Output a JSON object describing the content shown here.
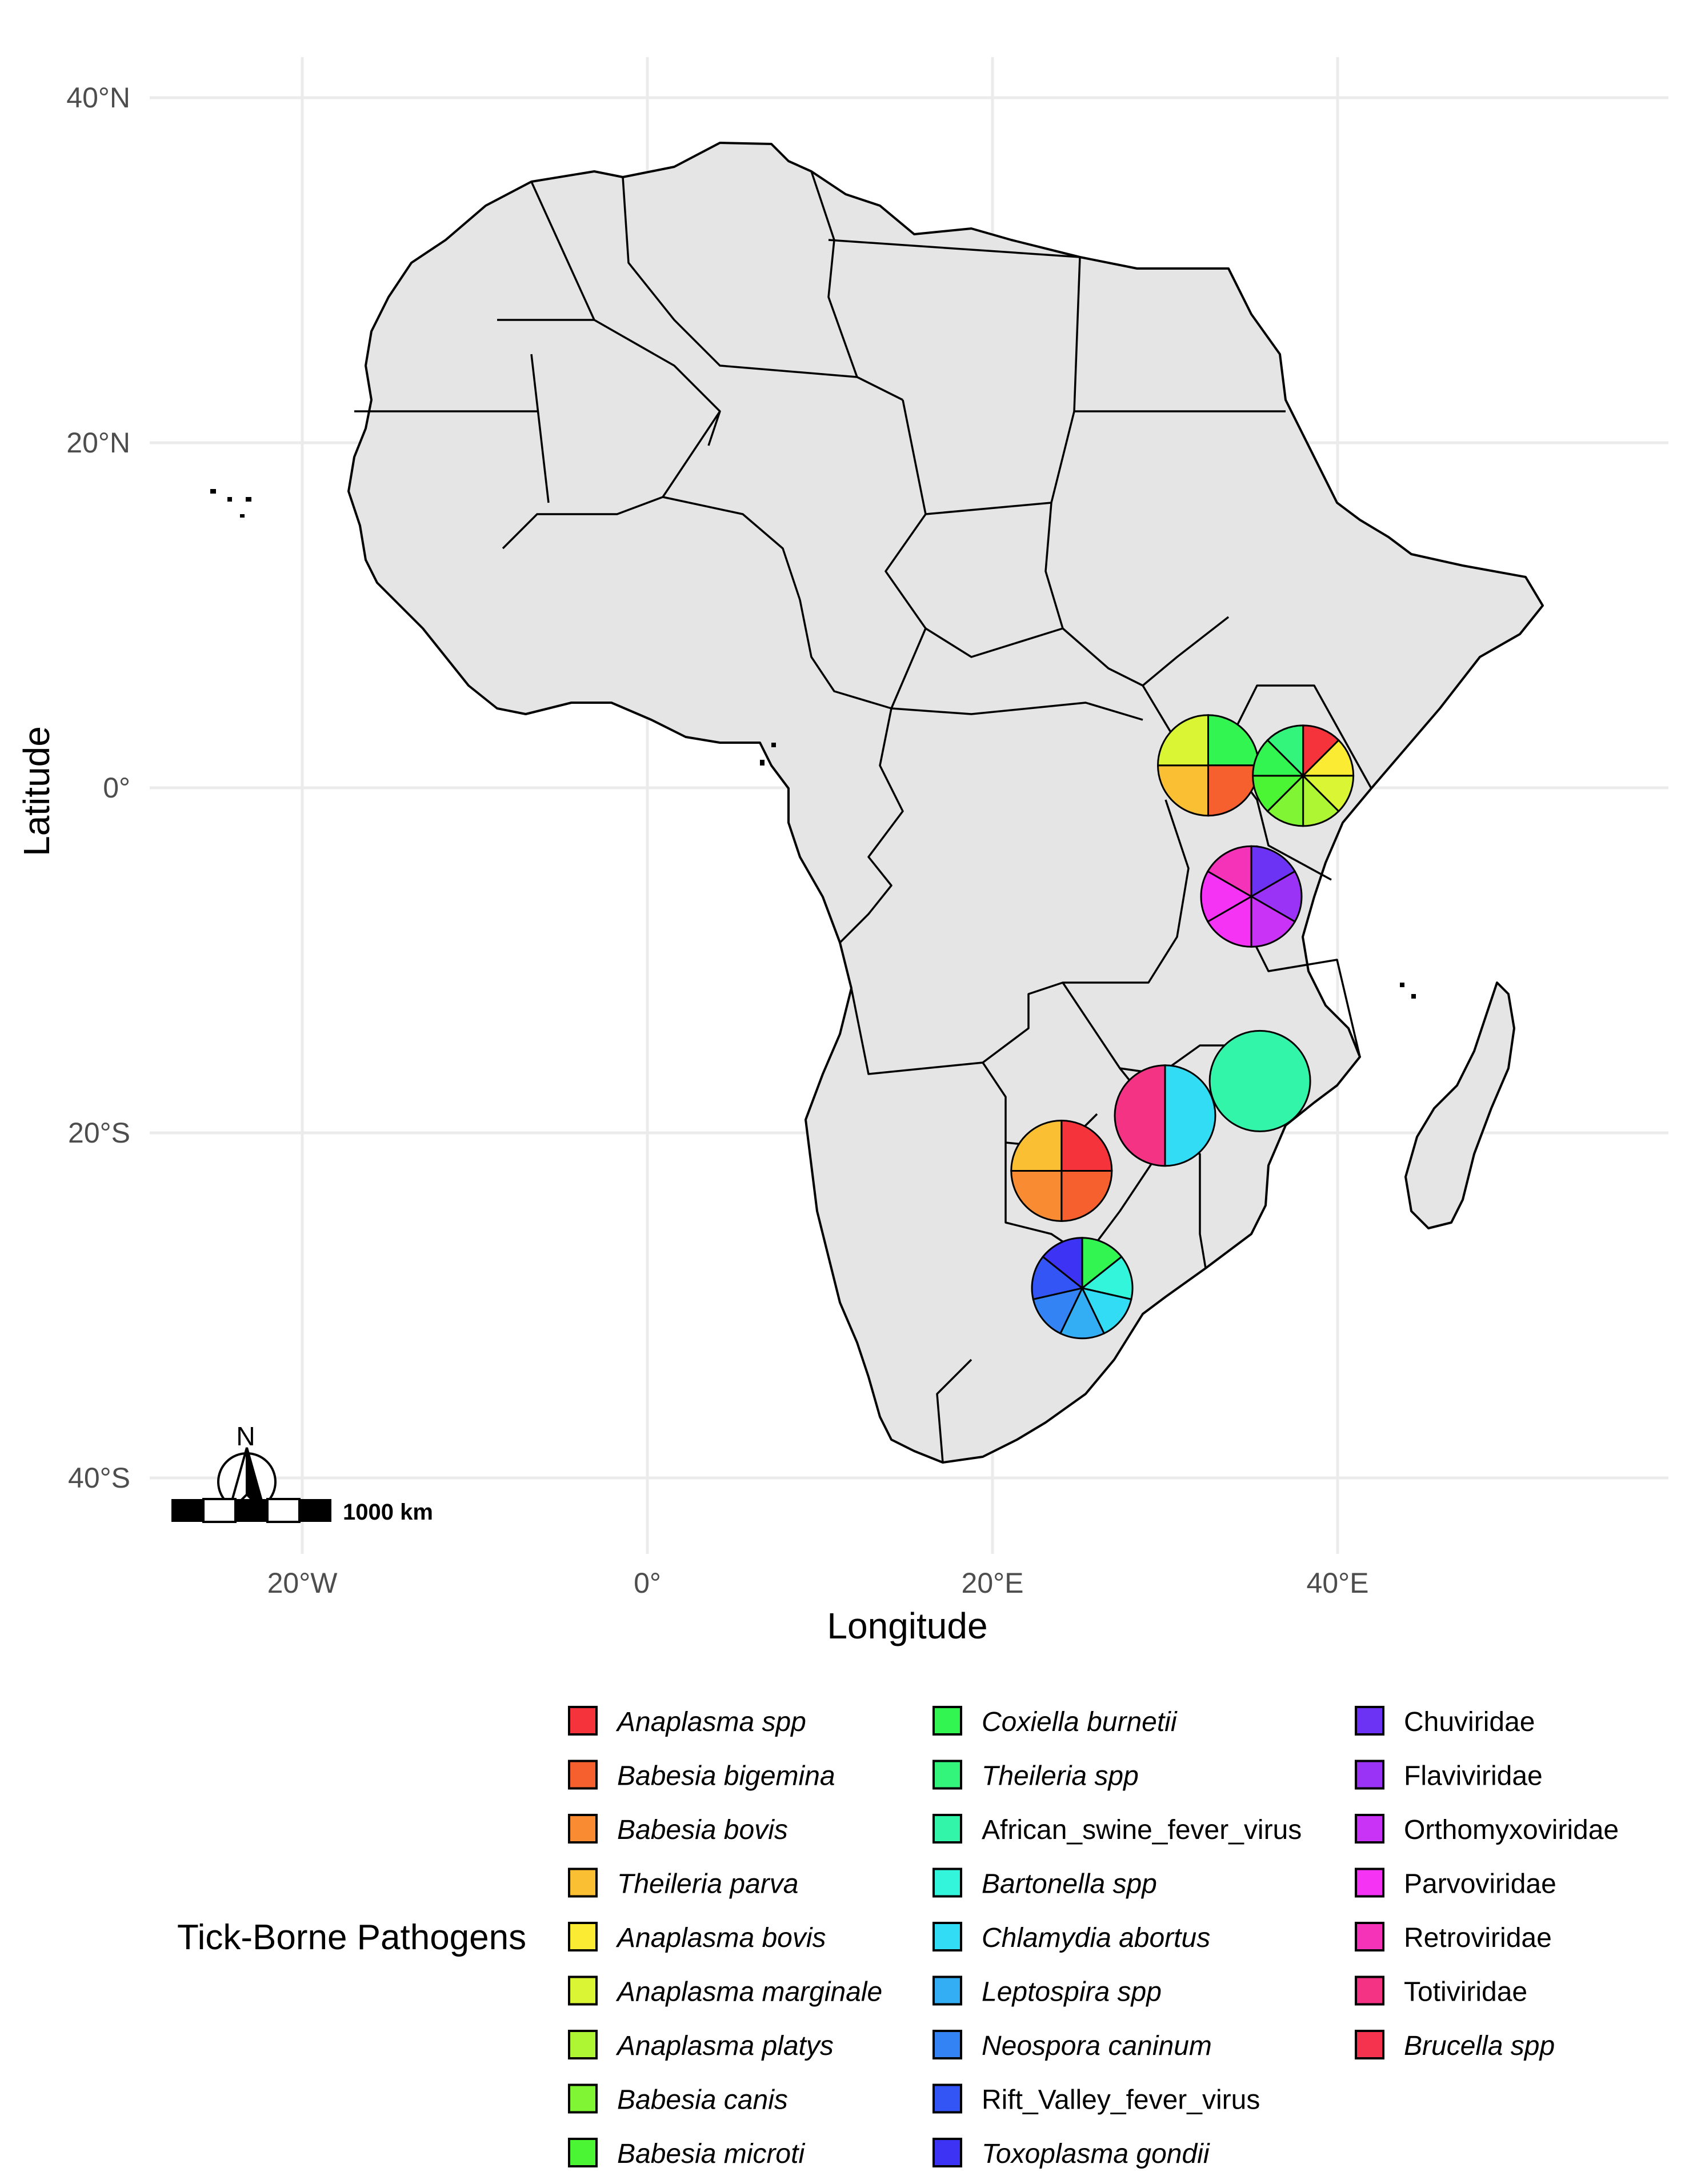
{
  "axes": {
    "x_title": "Longitude",
    "y_title": "Latitude",
    "x_ticks": [
      {
        "value": -20,
        "label": "20°W"
      },
      {
        "value": 0,
        "label": "0°"
      },
      {
        "value": 20,
        "label": "20°E"
      },
      {
        "value": 40,
        "label": "40°E"
      }
    ],
    "y_ticks": [
      {
        "value": 40,
        "label": "40°N"
      },
      {
        "value": 20,
        "label": "20°N"
      },
      {
        "value": 0,
        "label": "0°"
      },
      {
        "value": -20,
        "label": "20°S"
      },
      {
        "value": -40,
        "label": "40°S"
      }
    ],
    "lon_range": [
      -28,
      58
    ],
    "lat_range": [
      -43,
      44
    ]
  },
  "north_arrow": {
    "label": "N"
  },
  "scale_bar": {
    "label": "1000 km"
  },
  "legend": {
    "title": "Tick-Borne Pathogens",
    "entries": [
      {
        "label": "Anaplasma spp",
        "color": "#f4333b",
        "italic": true
      },
      {
        "label": "Babesia bigemina",
        "color": "#f5602e",
        "italic": true
      },
      {
        "label": "Babesia bovis",
        "color": "#f98c33",
        "italic": true
      },
      {
        "label": "Theileria parva",
        "color": "#fbbf33",
        "italic": true
      },
      {
        "label": "Anaplasma bovis",
        "color": "#fbec33",
        "italic": true
      },
      {
        "label": "Anaplasma marginale",
        "color": "#d9f533",
        "italic": true
      },
      {
        "label": "Anaplasma platys",
        "color": "#aef533",
        "italic": true
      },
      {
        "label": "Babesia canis",
        "color": "#7ff533",
        "italic": true
      },
      {
        "label": "Babesia microti",
        "color": "#4cf533",
        "italic": true
      },
      {
        "label": "Coxiella burnetii",
        "color": "#33f551",
        "italic": true
      },
      {
        "label": "Theileria spp",
        "color": "#33f57c",
        "italic": true
      },
      {
        "label": "African_swine_fever_virus",
        "color": "#33f5aa",
        "italic": false
      },
      {
        "label": "Bartonella spp",
        "color": "#33f5dc",
        "italic": true
      },
      {
        "label": "Chlamydia abortus",
        "color": "#33dcf5",
        "italic": true
      },
      {
        "label": "Leptospira spp",
        "color": "#33aef5",
        "italic": true
      },
      {
        "label": "Neospora caninum",
        "color": "#3383f5",
        "italic": true
      },
      {
        "label": "Rift_Valley_fever_virus",
        "color": "#3355f5",
        "italic": false
      },
      {
        "label": "Toxoplasma gondii",
        "color": "#3c33f5",
        "italic": true
      },
      {
        "label": "Chuviridae",
        "color": "#6c33f5",
        "italic": false
      },
      {
        "label": "Flaviviridae",
        "color": "#9a33f5",
        "italic": false
      },
      {
        "label": "Orthomyxoviridae",
        "color": "#c833f5",
        "italic": false
      },
      {
        "label": "Parvoviridae",
        "color": "#f533f5",
        "italic": false
      },
      {
        "label": "Retroviridae",
        "color": "#f533b8",
        "italic": false
      },
      {
        "label": "Totiviridae",
        "color": "#f53385",
        "italic": false
      },
      {
        "label": "Brucella spp",
        "color": "#f5334f",
        "italic": true
      }
    ]
  },
  "chart_data": {
    "type": "map-pie",
    "title": "",
    "xlabel": "Longitude",
    "ylabel": "Latitude",
    "region": "Africa",
    "pies": [
      {
        "name": "uganda",
        "lon": 32.5,
        "lat": 1.3,
        "slices": [
          {
            "pathogen": "Coxiella burnetii",
            "color": "#33f551",
            "value": 1
          },
          {
            "pathogen": "Babesia bigemina",
            "color": "#f5602e",
            "value": 1
          },
          {
            "pathogen": "Theileria parva",
            "color": "#fbbf33",
            "value": 1
          },
          {
            "pathogen": "Anaplasma marginale",
            "color": "#d9f533",
            "value": 1
          }
        ]
      },
      {
        "name": "kenya",
        "lon": 38.0,
        "lat": 0.7,
        "slices": [
          {
            "pathogen": "Anaplasma spp",
            "color": "#f4333b",
            "value": 1
          },
          {
            "pathogen": "Anaplasma bovis",
            "color": "#fbec33",
            "value": 1
          },
          {
            "pathogen": "Anaplasma marginale",
            "color": "#d9f533",
            "value": 1
          },
          {
            "pathogen": "Anaplasma platys",
            "color": "#aef533",
            "value": 1
          },
          {
            "pathogen": "Babesia canis",
            "color": "#7ff533",
            "value": 1
          },
          {
            "pathogen": "Babesia microti",
            "color": "#4cf533",
            "value": 1
          },
          {
            "pathogen": "Coxiella burnetii",
            "color": "#33f551",
            "value": 1
          },
          {
            "pathogen": "Theileria spp",
            "color": "#33f57c",
            "value": 1
          }
        ]
      },
      {
        "name": "tanzania",
        "lon": 35.0,
        "lat": -6.3,
        "slices": [
          {
            "pathogen": "Chuviridae",
            "color": "#6c33f5",
            "value": 1
          },
          {
            "pathogen": "Flaviviridae",
            "color": "#9a33f5",
            "value": 1
          },
          {
            "pathogen": "Orthomyxoviridae",
            "color": "#c833f5",
            "value": 1
          },
          {
            "pathogen": "Parvoviridae",
            "color": "#f533f5",
            "value": 1
          },
          {
            "pathogen": "Parvoviridae",
            "color": "#f533f5",
            "value": 1
          },
          {
            "pathogen": "Retroviridae",
            "color": "#f533b8",
            "value": 1
          }
        ]
      },
      {
        "name": "mozambique",
        "lon": 35.5,
        "lat": -17.0,
        "slices": [
          {
            "pathogen": "African_swine_fever_virus",
            "color": "#33f5aa",
            "value": 1
          }
        ]
      },
      {
        "name": "zimbabwe",
        "lon": 30.0,
        "lat": -19.0,
        "slices": [
          {
            "pathogen": "Chlamydia abortus",
            "color": "#33dcf5",
            "value": 1
          },
          {
            "pathogen": "Totiviridae",
            "color": "#f53385",
            "value": 1
          }
        ]
      },
      {
        "name": "botswana",
        "lon": 24.0,
        "lat": -22.2,
        "slices": [
          {
            "pathogen": "Anaplasma spp",
            "color": "#f4333b",
            "value": 1
          },
          {
            "pathogen": "Babesia bigemina",
            "color": "#f5602e",
            "value": 1
          },
          {
            "pathogen": "Babesia bovis",
            "color": "#f98c33",
            "value": 1
          },
          {
            "pathogen": "Theileria parva",
            "color": "#fbbf33",
            "value": 1
          }
        ]
      },
      {
        "name": "south-africa",
        "lon": 25.2,
        "lat": -29.0,
        "slices": [
          {
            "pathogen": "Coxiella burnetii",
            "color": "#33f551",
            "value": 1
          },
          {
            "pathogen": "Bartonella spp",
            "color": "#33f5dc",
            "value": 1
          },
          {
            "pathogen": "Chlamydia abortus",
            "color": "#33dcf5",
            "value": 1
          },
          {
            "pathogen": "Leptospira spp",
            "color": "#33aef5",
            "value": 1
          },
          {
            "pathogen": "Neospora caninum",
            "color": "#3383f5",
            "value": 1
          },
          {
            "pathogen": "Rift_Valley_fever_virus",
            "color": "#3355f5",
            "value": 1
          },
          {
            "pathogen": "Toxoplasma gondii",
            "color": "#3c33f5",
            "value": 1
          }
        ]
      }
    ]
  }
}
